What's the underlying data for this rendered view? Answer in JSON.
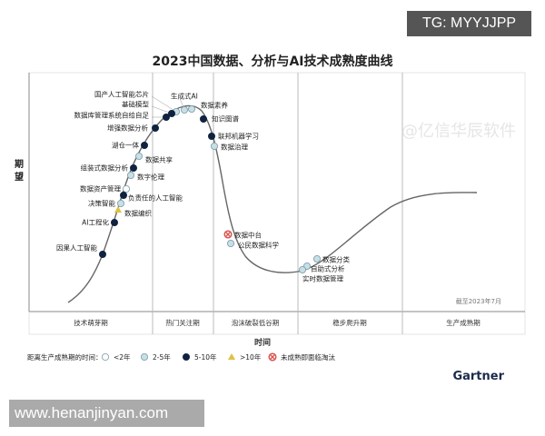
{
  "overlay": {
    "tag": "TG: MYYJJPP",
    "website": "www.henanjinyan.com",
    "source_watermark": "@亿信华辰软件",
    "brand": "Gartner"
  },
  "title": "2023中国数据、分析与AI技术成熟度曲线",
  "y_label": "期望",
  "x_label": "时间",
  "as_of": "截至2023年7月",
  "phases": [
    "技术萌芽期",
    "热门关注期",
    "泡沫破裂低谷期",
    "稳步爬升期",
    "生产成熟期"
  ],
  "legend": {
    "prefix": "距离生产成熟期的时间：",
    "items": [
      {
        "label": "<2年",
        "marker": "white"
      },
      {
        "label": "2-5年",
        "marker": "light"
      },
      {
        "label": "5-10年",
        "marker": "dark"
      },
      {
        "label": ">10年",
        "marker": "triangle"
      },
      {
        "label": "未成熟即面临淘汰",
        "marker": "obsolete"
      }
    ]
  },
  "colors": {
    "dark": "#0f2340",
    "light": "#c8dfe6",
    "white": "#ffffff",
    "triangle": "#e0c040",
    "obsolete": "#d9534f",
    "curve": "#555555"
  },
  "technologies": [
    {
      "name": "国产人工智能芯片",
      "marker": "light"
    },
    {
      "name": "基础模型",
      "marker": "dark"
    },
    {
      "name": "数据库管理系统自给自足",
      "marker": "dark"
    },
    {
      "name": "生成式AI",
      "marker": "light"
    },
    {
      "name": "数据素养",
      "marker": "light"
    },
    {
      "name": "知识图谱",
      "marker": "dark"
    },
    {
      "name": "增强数据分析",
      "marker": "dark"
    },
    {
      "name": "湖仓一体",
      "marker": "dark"
    },
    {
      "name": "数据共享",
      "marker": "light"
    },
    {
      "name": "组装式数据分析",
      "marker": "dark"
    },
    {
      "name": "数字伦理",
      "marker": "light"
    },
    {
      "name": "数据资产管理",
      "marker": "white"
    },
    {
      "name": "负责任的人工智能",
      "marker": "dark"
    },
    {
      "name": "决策智能",
      "marker": "light"
    },
    {
      "name": "数据编织",
      "marker": "triangle"
    },
    {
      "name": "AI工程化",
      "marker": "dark"
    },
    {
      "name": "因果人工智能",
      "marker": "dark"
    },
    {
      "name": "联邦机器学习",
      "marker": "dark"
    },
    {
      "name": "数据治理",
      "marker": "light"
    },
    {
      "name": "数据中台",
      "marker": "obsolete"
    },
    {
      "name": "公民数据科学",
      "marker": "light"
    },
    {
      "name": "数据分类",
      "marker": "light"
    },
    {
      "name": "自助式分析",
      "marker": "light"
    },
    {
      "name": "实时数据管理",
      "marker": "light"
    }
  ]
}
